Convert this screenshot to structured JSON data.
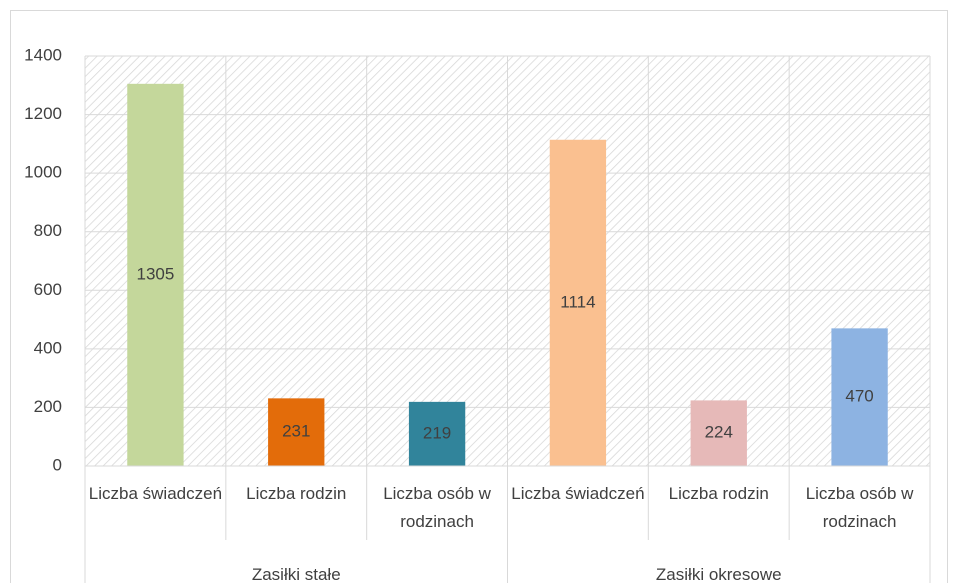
{
  "chart_data": {
    "type": "bar",
    "groups": [
      {
        "name": "Zasiłki stałe",
        "categories": [
          "Liczba świadczeń",
          "Liczba rodzin",
          "Liczba osób w rodzinach"
        ],
        "values": [
          1305,
          231,
          219
        ],
        "colors": [
          "#c4d79b",
          "#e36c0a",
          "#31849b"
        ]
      },
      {
        "name": "Zasiłki okresowe",
        "categories": [
          "Liczba świadczeń",
          "Liczba rodzin",
          "Liczba osób w rodzinach"
        ],
        "values": [
          1114,
          224,
          470
        ],
        "colors": [
          "#fac090",
          "#e6b9b8",
          "#8db3e2"
        ]
      }
    ],
    "ylim": [
      0,
      1400
    ],
    "yticks": [
      0,
      200,
      400,
      600,
      800,
      1000,
      1200,
      1400
    ],
    "grid": true,
    "data_labels": true
  }
}
